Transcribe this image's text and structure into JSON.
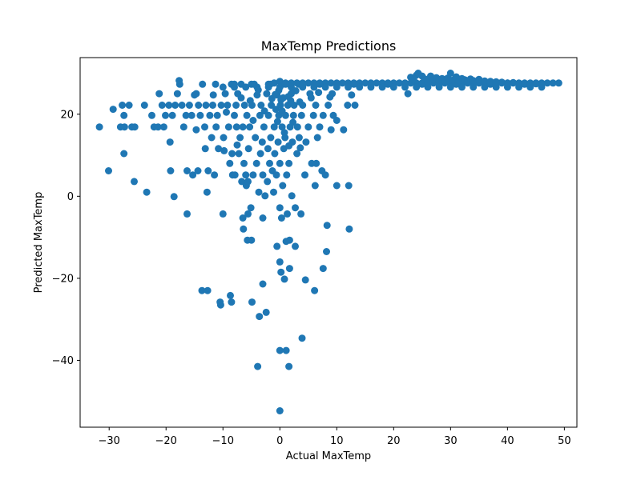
{
  "chart_data": {
    "type": "scatter",
    "title": "MaxTemp Predictions",
    "xlabel": "Actual MaxTemp",
    "ylabel": "Predicted MaxTemp",
    "xlim": [
      -35.1,
      52.2
    ],
    "ylim": [
      -56.3,
      33.8
    ],
    "xticks": [
      -30,
      -20,
      -10,
      0,
      10,
      20,
      30,
      40,
      50
    ],
    "yticks": [
      -40,
      -20,
      0,
      20
    ],
    "grid": false,
    "color": "#1f77b4",
    "points": [
      [
        -31.7,
        16.9
      ],
      [
        -30.1,
        6.2
      ],
      [
        -29.3,
        21.2
      ],
      [
        -28.0,
        16.9
      ],
      [
        -27.7,
        22.2
      ],
      [
        -27.4,
        19.7
      ],
      [
        -27.4,
        10.4
      ],
      [
        -27.3,
        16.9
      ],
      [
        -26.5,
        22.2
      ],
      [
        -26.0,
        16.9
      ],
      [
        -25.6,
        3.6
      ],
      [
        -25.5,
        16.9
      ],
      [
        -23.8,
        22.2
      ],
      [
        -23.4,
        1.0
      ],
      [
        -22.5,
        19.7
      ],
      [
        -22.1,
        16.9
      ],
      [
        -21.4,
        16.9
      ],
      [
        -21.2,
        25.0
      ],
      [
        -20.7,
        22.2
      ],
      [
        -20.4,
        16.9
      ],
      [
        -20.1,
        19.7
      ],
      [
        -19.5,
        22.2
      ],
      [
        -19.3,
        13.2
      ],
      [
        -19.2,
        6.2
      ],
      [
        -18.9,
        19.7
      ],
      [
        -18.6,
        -0.1
      ],
      [
        -18.4,
        22.2
      ],
      [
        -18.0,
        25.0
      ],
      [
        -17.7,
        28.2
      ],
      [
        -17.6,
        27.3
      ],
      [
        -17.2,
        22.2
      ],
      [
        -16.9,
        16.9
      ],
      [
        -16.5,
        19.7
      ],
      [
        -16.3,
        -4.3
      ],
      [
        -16.3,
        6.2
      ],
      [
        -15.9,
        22.2
      ],
      [
        -15.5,
        19.7
      ],
      [
        -15.3,
        5.2
      ],
      [
        -15.0,
        24.7
      ],
      [
        -14.7,
        25.0
      ],
      [
        -14.7,
        16.2
      ],
      [
        -14.4,
        6.2
      ],
      [
        -14.3,
        22.2
      ],
      [
        -14.0,
        19.7
      ],
      [
        -13.7,
        -23.0
      ],
      [
        -13.6,
        27.3
      ],
      [
        -13.1,
        11.6
      ],
      [
        -13.2,
        16.9
      ],
      [
        -13.0,
        22.2
      ],
      [
        -12.8,
        1.0
      ],
      [
        -12.7,
        -23.0
      ],
      [
        -12.6,
        6.2
      ],
      [
        -12.3,
        19.7
      ],
      [
        -12.0,
        14.3
      ],
      [
        -11.8,
        22.2
      ],
      [
        -11.7,
        24.7
      ],
      [
        -11.5,
        5.2
      ],
      [
        -11.3,
        27.3
      ],
      [
        -11.2,
        16.9
      ],
      [
        -11.0,
        19.7
      ],
      [
        -10.8,
        11.6
      ],
      [
        -10.5,
        -25.8
      ],
      [
        -10.4,
        -26.5
      ],
      [
        -10.3,
        22.2
      ],
      [
        -10.0,
        -4.3
      ],
      [
        -9.9,
        14.3
      ],
      [
        -9.8,
        11.1
      ],
      [
        -9.6,
        25.0
      ],
      [
        -9.4,
        20.5
      ],
      [
        -9.2,
        22.2
      ],
      [
        -9.0,
        16.9
      ],
      [
        -8.8,
        8.0
      ],
      [
        -8.7,
        -24.2
      ],
      [
        -8.5,
        27.3
      ],
      [
        -8.5,
        -25.8
      ],
      [
        -8.4,
        10.4
      ],
      [
        -8.3,
        5.2
      ],
      [
        -8.0,
        19.7
      ],
      [
        -7.9,
        5.2
      ],
      [
        -7.7,
        22.2
      ],
      [
        -7.6,
        16.9
      ],
      [
        -7.5,
        12.5
      ],
      [
        -7.4,
        25.0
      ],
      [
        -7.2,
        10.4
      ],
      [
        -7.0,
        14.3
      ],
      [
        -6.8,
        27.3
      ],
      [
        -6.7,
        3.6
      ],
      [
        -6.5,
        16.9
      ],
      [
        -6.5,
        -5.3
      ],
      [
        -6.4,
        -8.0
      ],
      [
        -6.3,
        8.0
      ],
      [
        -6.2,
        22.2
      ],
      [
        -6.0,
        5.2
      ],
      [
        -5.9,
        2.6
      ],
      [
        -5.8,
        19.7
      ],
      [
        -5.7,
        -10.7
      ],
      [
        -5.6,
        -4.3
      ],
      [
        -5.6,
        3.6
      ],
      [
        -5.5,
        11.6
      ],
      [
        -5.3,
        16.9
      ],
      [
        -5.1,
        -2.8
      ],
      [
        -5.0,
        -10.7
      ],
      [
        -4.9,
        22.2
      ],
      [
        -4.9,
        -25.8
      ],
      [
        -4.7,
        18.5
      ],
      [
        -4.7,
        5.2
      ],
      [
        -4.5,
        27.3
      ],
      [
        -4.3,
        14.3
      ],
      [
        -4.1,
        8.0
      ],
      [
        -4.0,
        24.7
      ],
      [
        -3.9,
        -41.5
      ],
      [
        -3.7,
        1.0
      ],
      [
        -3.6,
        -29.3
      ],
      [
        -3.5,
        19.7
      ],
      [
        -3.4,
        10.4
      ],
      [
        -3.3,
        22.2
      ],
      [
        -3.1,
        13.2
      ],
      [
        -3.0,
        -5.3
      ],
      [
        -3.0,
        5.2
      ],
      [
        -3.0,
        -21.4
      ],
      [
        -2.8,
        16.9
      ],
      [
        -2.6,
        0.1
      ],
      [
        -2.4,
        -28.3
      ],
      [
        -2.3,
        25.0
      ],
      [
        -2.2,
        3.6
      ],
      [
        -2.1,
        11.6
      ],
      [
        -2.0,
        19.7
      ],
      [
        -1.8,
        8.0
      ],
      [
        -1.7,
        27.3
      ],
      [
        -1.6,
        14.3
      ],
      [
        -1.5,
        22.2
      ],
      [
        -1.3,
        6.2
      ],
      [
        -1.1,
        1.0
      ],
      [
        -1.0,
        16.9
      ],
      [
        -0.9,
        10.4
      ],
      [
        -0.7,
        21.2
      ],
      [
        -0.6,
        5.2
      ],
      [
        -0.5,
        24.7
      ],
      [
        -0.5,
        -12.2
      ],
      [
        -0.3,
        13.2
      ],
      [
        -0.2,
        19.7
      ],
      [
        0.0,
        -52.3
      ],
      [
        0.0,
        -37.6
      ],
      [
        0.0,
        -16.0
      ],
      [
        0.0,
        -2.8
      ],
      [
        0.0,
        8.0
      ],
      [
        0.1,
        22.2
      ],
      [
        0.2,
        -18.5
      ],
      [
        0.3,
        -5.3
      ],
      [
        0.4,
        16.9
      ],
      [
        0.5,
        27.3
      ],
      [
        0.5,
        2.6
      ],
      [
        0.7,
        11.6
      ],
      [
        0.8,
        -20.2
      ],
      [
        0.9,
        14.3
      ],
      [
        1.0,
        19.7
      ],
      [
        1.1,
        -11.0
      ],
      [
        1.1,
        -37.6
      ],
      [
        1.2,
        5.2
      ],
      [
        1.3,
        -4.3
      ],
      [
        1.4,
        22.2
      ],
      [
        1.6,
        -41.5
      ],
      [
        1.6,
        8.0
      ],
      [
        1.7,
        -10.7
      ],
      [
        1.7,
        -17.6
      ],
      [
        1.8,
        16.9
      ],
      [
        2.0,
        25.0
      ],
      [
        2.1,
        0.1
      ],
      [
        2.2,
        13.2
      ],
      [
        2.4,
        19.7
      ],
      [
        2.5,
        22.2
      ],
      [
        2.7,
        -2.8
      ],
      [
        2.7,
        -12.2
      ],
      [
        3.0,
        10.4
      ],
      [
        3.1,
        16.9
      ],
      [
        3.3,
        27.3
      ],
      [
        3.4,
        14.3
      ],
      [
        3.7,
        -4.3
      ],
      [
        3.8,
        19.7
      ],
      [
        3.9,
        -34.6
      ],
      [
        4.0,
        22.2
      ],
      [
        4.4,
        5.2
      ],
      [
        4.5,
        -20.4
      ],
      [
        4.6,
        13.2
      ],
      [
        5.0,
        16.9
      ],
      [
        5.3,
        25.0
      ],
      [
        5.6,
        8.0
      ],
      [
        5.9,
        19.7
      ],
      [
        6.1,
        -23.0
      ],
      [
        6.2,
        2.6
      ],
      [
        6.3,
        22.2
      ],
      [
        6.4,
        8.0
      ],
      [
        6.6,
        14.3
      ],
      [
        7.0,
        16.9
      ],
      [
        7.4,
        6.2
      ],
      [
        7.6,
        -17.6
      ],
      [
        7.6,
        19.7
      ],
      [
        8.0,
        5.2
      ],
      [
        8.2,
        -13.5
      ],
      [
        8.3,
        -7.1
      ],
      [
        8.5,
        22.2
      ],
      [
        9.0,
        16.2
      ],
      [
        9.2,
        25.0
      ],
      [
        9.4,
        19.7
      ],
      [
        10.0,
        18.5
      ],
      [
        10.0,
        2.6
      ],
      [
        11.2,
        16.2
      ],
      [
        11.9,
        22.2
      ],
      [
        12.1,
        2.6
      ],
      [
        12.2,
        -8.0
      ],
      [
        12.6,
        24.7
      ],
      [
        13.2,
        22.2
      ],
      [
        -1.0,
        27.6
      ],
      [
        0.0,
        28.0
      ],
      [
        1.0,
        27.6
      ],
      [
        2.0,
        27.6
      ],
      [
        3.0,
        27.6
      ],
      [
        4.0,
        27.6
      ],
      [
        5.0,
        27.6
      ],
      [
        6.0,
        27.6
      ],
      [
        7.0,
        27.6
      ],
      [
        8.0,
        27.6
      ],
      [
        9.0,
        27.6
      ],
      [
        10.0,
        27.6
      ],
      [
        11.0,
        27.6
      ],
      [
        12.0,
        27.6
      ],
      [
        13.0,
        27.6
      ],
      [
        14.0,
        27.6
      ],
      [
        15.0,
        27.6
      ],
      [
        16.0,
        27.6
      ],
      [
        17.0,
        27.6
      ],
      [
        18.0,
        27.6
      ],
      [
        19.0,
        27.6
      ],
      [
        20.0,
        27.6
      ],
      [
        21.0,
        27.6
      ],
      [
        22.0,
        27.6
      ],
      [
        23.0,
        27.6
      ],
      [
        24.0,
        27.6
      ],
      [
        25.0,
        27.6
      ],
      [
        26.0,
        27.6
      ],
      [
        27.0,
        27.6
      ],
      [
        28.0,
        27.6
      ],
      [
        29.0,
        27.6
      ],
      [
        30.0,
        27.6
      ],
      [
        31.0,
        27.6
      ],
      [
        32.0,
        27.6
      ],
      [
        33.0,
        27.6
      ],
      [
        34.0,
        27.6
      ],
      [
        35.0,
        27.6
      ],
      [
        36.0,
        27.6
      ],
      [
        37.0,
        27.6
      ],
      [
        38.0,
        27.6
      ],
      [
        39.0,
        27.6
      ],
      [
        40.0,
        27.6
      ],
      [
        41.0,
        27.6
      ],
      [
        42.0,
        27.6
      ],
      [
        43.0,
        27.6
      ],
      [
        44.0,
        27.6
      ],
      [
        45.0,
        27.6
      ],
      [
        46.0,
        27.6
      ],
      [
        47.0,
        27.6
      ],
      [
        48.0,
        27.6
      ],
      [
        49.0,
        27.6
      ],
      [
        -10.0,
        26.6
      ],
      [
        -8.0,
        26.6
      ],
      [
        -6.0,
        26.6
      ],
      [
        -4.0,
        26.6
      ],
      [
        -2.0,
        26.6
      ],
      [
        0.0,
        26.6
      ],
      [
        2.0,
        26.6
      ],
      [
        4.0,
        26.6
      ],
      [
        6.0,
        26.6
      ],
      [
        8.0,
        26.6
      ],
      [
        10.0,
        26.6
      ],
      [
        12.0,
        26.6
      ],
      [
        14.0,
        26.6
      ],
      [
        16.0,
        26.6
      ],
      [
        18.0,
        26.6
      ],
      [
        20.0,
        26.6
      ],
      [
        22.0,
        26.6
      ],
      [
        24.0,
        26.6
      ],
      [
        26.0,
        26.6
      ],
      [
        28.0,
        26.6
      ],
      [
        30.0,
        26.6
      ],
      [
        32.0,
        26.6
      ],
      [
        34.0,
        26.6
      ],
      [
        36.0,
        26.6
      ],
      [
        38.0,
        26.6
      ],
      [
        40.0,
        26.6
      ],
      [
        42.0,
        26.6
      ],
      [
        44.0,
        26.6
      ],
      [
        46.0,
        26.6
      ],
      [
        -8.0,
        27.3
      ],
      [
        -5.0,
        27.3
      ],
      [
        -2.0,
        27.3
      ],
      [
        1.0,
        27.3
      ],
      [
        4.0,
        27.3
      ],
      [
        7.0,
        27.3
      ],
      [
        10.0,
        27.3
      ],
      [
        13.0,
        27.3
      ],
      [
        16.0,
        27.3
      ],
      [
        19.0,
        27.3
      ],
      [
        22.0,
        27.3
      ],
      [
        25.0,
        27.3
      ],
      [
        28.0,
        27.3
      ],
      [
        31.0,
        27.3
      ],
      [
        34.0,
        27.3
      ],
      [
        37.0,
        27.3
      ],
      [
        40.0,
        27.3
      ],
      [
        43.0,
        27.3
      ],
      [
        46.0,
        27.3
      ],
      [
        22.5,
        25.0
      ],
      [
        23.0,
        29.0
      ],
      [
        23.5,
        28.4
      ],
      [
        24.0,
        29.5
      ],
      [
        24.3,
        30.0
      ],
      [
        25.0,
        29.3
      ],
      [
        25.5,
        28.6
      ],
      [
        26.0,
        28.0
      ],
      [
        26.5,
        29.3
      ],
      [
        27.0,
        28.4
      ],
      [
        27.5,
        28.9
      ],
      [
        28.0,
        28.3
      ],
      [
        28.5,
        28.7
      ],
      [
        29.0,
        28.1
      ],
      [
        29.5,
        28.8
      ],
      [
        30.0,
        30.0
      ],
      [
        30.5,
        28.4
      ],
      [
        31.0,
        29.1
      ],
      [
        31.5,
        28.2
      ],
      [
        32.0,
        28.7
      ],
      [
        32.5,
        28.4
      ],
      [
        33.0,
        28.1
      ],
      [
        33.5,
        28.6
      ],
      [
        34.0,
        28.2
      ],
      [
        35.0,
        28.5
      ],
      [
        36.0,
        28.1
      ],
      [
        37.0,
        28.0
      ],
      [
        38.0,
        27.9
      ],
      [
        39.0,
        27.8
      ],
      [
        40.0,
        27.6
      ],
      [
        41.0,
        27.7
      ],
      [
        42.0,
        27.4
      ],
      [
        43.0,
        27.5
      ],
      [
        44.0,
        27.3
      ],
      [
        45.0,
        27.4
      ],
      [
        0.2,
        23.5
      ],
      [
        0.6,
        24.0
      ],
      [
        -0.2,
        25.8
      ],
      [
        1.5,
        24.3
      ],
      [
        2.8,
        25.7
      ],
      [
        3.5,
        23.0
      ],
      [
        -1.4,
        23.8
      ],
      [
        -3.8,
        25.9
      ],
      [
        -0.8,
        24.8
      ],
      [
        1.9,
        23.3
      ],
      [
        0.4,
        20.8
      ],
      [
        -0.4,
        18.2
      ],
      [
        2.3,
        18.0
      ],
      [
        5.5,
        24.0
      ],
      [
        6.8,
        25.3
      ],
      [
        8.8,
        24.2
      ],
      [
        -6.8,
        24.0
      ],
      [
        -5.2,
        23.3
      ],
      [
        -2.7,
        20.8
      ],
      [
        0.8,
        15.5
      ],
      [
        1.6,
        12.3
      ],
      [
        3.6,
        11.8
      ]
    ]
  }
}
